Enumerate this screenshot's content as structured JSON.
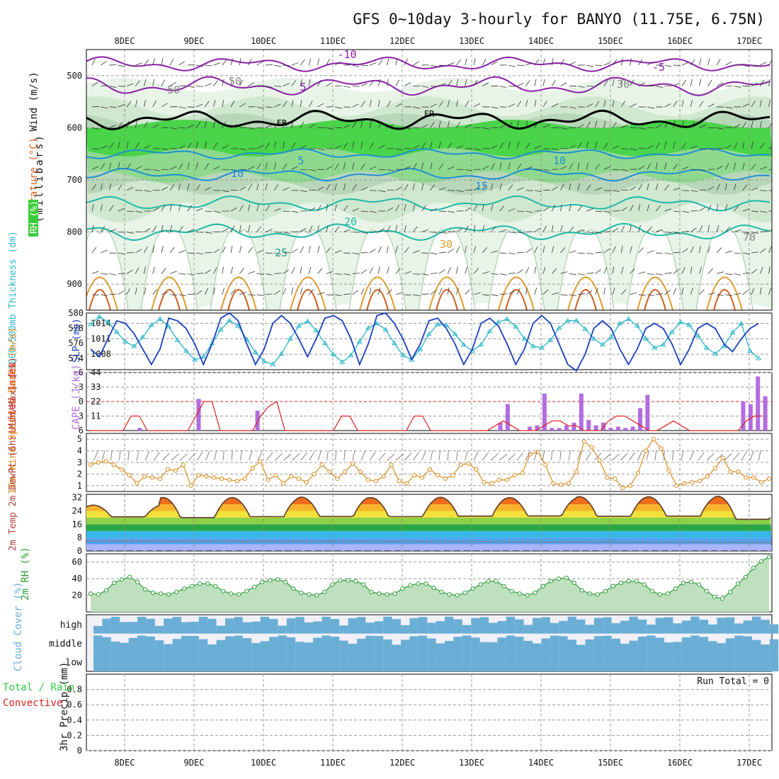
{
  "title": "GFS 0~10day 3-hourly for BANYO (11.75E, 6.75N)",
  "colors": {
    "rh": "#2ecc40",
    "temp_neg": "#8b1fa8",
    "temp_pos": "#1f8fd6",
    "freeze": "#000000",
    "slp": "#1a3fbf",
    "thick": "#2ab7c9",
    "li": "#e02020",
    "cape": "#b36ce0",
    "wind": "#e08a1e",
    "rh2m": "#2e9e3a",
    "cloud": "#6aaed6",
    "precip": "#2ecc40"
  },
  "chart_data": {
    "type": "meteogram",
    "x_axis": {
      "labels": [
        "8DEC",
        "9DEC",
        "10DEC",
        "11DEC",
        "12DEC",
        "13DEC",
        "14DEC",
        "15DEC",
        "16DEC",
        "17DEC"
      ],
      "start_offset_days": -0.55,
      "end_offset_days": 9.3
    },
    "panels": [
      {
        "id": "upper_air",
        "ylabel": "(millibars)",
        "left_labels": [
          "Wind (m/s)",
          "Temperature (°C)",
          "RH (%)"
        ],
        "ylim": [
          950,
          450
        ],
        "yticks": [
          500,
          600,
          700,
          800,
          900
        ],
        "contour_labels": [
          "-10",
          "-5",
          "5",
          "FR",
          "FR",
          "5",
          "10",
          "10",
          "15",
          "20",
          "25",
          "30",
          "30",
          "50",
          "50",
          "70"
        ],
        "isotherms": [
          {
            "label": "-10",
            "base": 478,
            "amp": 14
          },
          {
            "label": "-5",
            "base": 520,
            "amp": 18
          },
          {
            "label": "FR",
            "base": 585,
            "amp": 18
          },
          {
            "label": "5",
            "base": 650,
            "amp": 10
          },
          {
            "label": "10",
            "base": 690,
            "amp": 12
          },
          {
            "label": "15",
            "base": 745,
            "amp": 14
          },
          {
            "label": "20",
            "base": 800,
            "amp": 16
          }
        ]
      },
      {
        "id": "slp_thickness",
        "ylabel_left": "1000~500mb Thickness (dm)",
        "ylabel_right": "SLP (mb)",
        "left_ticks": [
          574,
          576,
          578,
          580
        ],
        "right_ticks": [
          1008,
          1011,
          1014
        ],
        "ylim_left": [
          572.5,
          580
        ],
        "ylim_right": [
          1005,
          1016
        ],
        "slp_series": [
          1009,
          1007.5,
          1011,
          1014.5,
          1014,
          1012,
          1009,
          1006,
          1009,
          1015,
          1014.5,
          1013,
          1010,
          1006,
          1010,
          1015,
          1016,
          1014.5,
          1010,
          1006,
          1009,
          1014,
          1015.5,
          1014,
          1011,
          1007.5,
          1011,
          1015,
          1015.5,
          1014.5,
          1011,
          1006,
          1010,
          1015.5,
          1016,
          1014,
          1011,
          1007,
          1010,
          1014.5,
          1015,
          1013,
          1010,
          1006,
          1009,
          1014,
          1015,
          1013.5,
          1010,
          1006,
          1009,
          1014,
          1015.5,
          1014,
          1010,
          1006,
          1004.8,
          1008,
          1013,
          1014.5,
          1013,
          1009,
          1006,
          1009,
          1013,
          1014,
          1013,
          1010,
          1006,
          1009,
          1013,
          1014,
          1013,
          1010,
          1008.5,
          1011,
          1013,
          1014
        ],
        "thickness_series": [
          578.5,
          579.5,
          578.8,
          577.5,
          576.2,
          575.6,
          576.8,
          578.4,
          579.2,
          578.2,
          576.4,
          575.0,
          573.8,
          574.2,
          576.0,
          577.8,
          579.0,
          578.3,
          576.5,
          574.8,
          573.6,
          573.2,
          574.6,
          576.6,
          578.3,
          578.9,
          577.7,
          576.0,
          574.5,
          573.5,
          574.4,
          576.2,
          578.0,
          578.6,
          577.8,
          576.0,
          574.4,
          573.8,
          575.2,
          577.2,
          578.5,
          578.4,
          577.2,
          575.8,
          575.0,
          575.8,
          577.6,
          578.8,
          579.2,
          578.2,
          576.6,
          575.6,
          575.4,
          576.4,
          578.0,
          579.0,
          579.0,
          577.9,
          576.6,
          575.8,
          576.8,
          578.6,
          579.2,
          578.3,
          576.6,
          575.4,
          575.8,
          577.5,
          578.8,
          578.4,
          577.0,
          575.4,
          574.6,
          575.6,
          577.4,
          578.6,
          575.0,
          574.0
        ]
      },
      {
        "id": "stability",
        "ylabel_left": "Lifted Index",
        "ylabel_right": "CAPE (J/kg)",
        "left_ticks": [
          "-6",
          "-3",
          "0",
          "3",
          "6"
        ],
        "right_ticks": [
          11,
          22,
          33,
          44
        ],
        "cape_ylim": [
          0,
          44
        ],
        "li_ylim": [
          6,
          -6
        ],
        "li_series": [
          6,
          6,
          6,
          6,
          6,
          3,
          3,
          6,
          6,
          6,
          6,
          6,
          6,
          3,
          0,
          0,
          6,
          6,
          6,
          6,
          6,
          3,
          1,
          0,
          6,
          6,
          6,
          6,
          6,
          6,
          6,
          3,
          3,
          6,
          6,
          6,
          6,
          6,
          6,
          6,
          3,
          3,
          6,
          6,
          6,
          6,
          6,
          6,
          6,
          6,
          5,
          4,
          5,
          6,
          6,
          6,
          5,
          4,
          4,
          5,
          5,
          6,
          6,
          6,
          4,
          3,
          3,
          4,
          5,
          6,
          6,
          5,
          4,
          5,
          6,
          6,
          6,
          6,
          6,
          6,
          6,
          4,
          3,
          3
        ],
        "cape_series": [
          0,
          0,
          0,
          0,
          0,
          0,
          2,
          0,
          0,
          0,
          0,
          0,
          0,
          0,
          24,
          0,
          0,
          0,
          0,
          0,
          0,
          0,
          15,
          0,
          0,
          0,
          0,
          0,
          0,
          0,
          0,
          0,
          0,
          0,
          0,
          0,
          0,
          0,
          0,
          0,
          0,
          0,
          0,
          0,
          0,
          0,
          0,
          0,
          0,
          0,
          0,
          0,
          0,
          0,
          0,
          6,
          20,
          0,
          0,
          3,
          4,
          28,
          2,
          2,
          4,
          6,
          28,
          8,
          4,
          6,
          2,
          3,
          2,
          3,
          17,
          27,
          0,
          0,
          0,
          0,
          0,
          0,
          0,
          0,
          0,
          0,
          0,
          0,
          22,
          20,
          41,
          26
        ]
      },
      {
        "id": "wind10m",
        "ylabel": "10m Wind Speed & Barbs (m/s)",
        "ylim": [
          0.5,
          5.5
        ],
        "yticks": [
          1,
          2,
          3,
          4,
          5
        ],
        "series": [
          2.8,
          3.0,
          3.1,
          2.8,
          2.4,
          1.9,
          1.2,
          1.8,
          1.7,
          1.6,
          2.4,
          2.3,
          2.8,
          1.0,
          1.9,
          1.8,
          1.7,
          1.6,
          1.5,
          1.4,
          1.6,
          2.5,
          3.1,
          1.5,
          1.9,
          1.2,
          1.8,
          1.6,
          1.3,
          2.0,
          2.8,
          2.2,
          1.6,
          2.2,
          2.9,
          2.2,
          1.5,
          1.4,
          1.8,
          2.8,
          1.4,
          1.2,
          1.9,
          1.7,
          2.4,
          1.9,
          1.6,
          1.9,
          2.8,
          2.9,
          2.4,
          1.3,
          1.2,
          1.5,
          1.5,
          1.9,
          2.1,
          3.7,
          3.9,
          2.8,
          1.2,
          1.1,
          1.2,
          2.2,
          4.8,
          4.3,
          3.2,
          1.7,
          1.6,
          0.8,
          1.0,
          2.1,
          4.0,
          5.0,
          4.2,
          2.3,
          1.0,
          1.2,
          1.3,
          1.4,
          1.8,
          2.5,
          3.4,
          2.2,
          2.2,
          1.7,
          1.7,
          1.3,
          1.6
        ]
      },
      {
        "id": "temp2m",
        "ylabel": "2m Temp 2m DewPt (6hr Min/Max) (°C)",
        "ylim": [
          0,
          34
        ],
        "yticks": [
          0,
          8,
          16,
          24,
          32
        ],
        "daily_max": [
          27.5,
          32.1,
          32.0,
          32.3,
          32.0,
          32.2,
          32.0,
          32.6,
          32.5,
          32.8
        ],
        "daily_min": [
          20.5,
          20.0,
          20.6,
          20.7,
          20.6,
          20.9,
          21.0,
          20.8,
          20.9,
          19.0
        ],
        "dewpoint_level": 6
      },
      {
        "id": "rh2m",
        "ylabel": "2m RH (%)",
        "ylim": [
          0,
          70
        ],
        "yticks": [
          20,
          40,
          60
        ],
        "series": [
          22,
          21,
          26,
          35,
          39,
          42,
          36,
          27,
          23,
          22,
          21,
          24,
          28,
          31,
          34,
          34,
          31,
          25,
          22,
          21,
          25,
          30,
          36,
          38,
          39,
          36,
          28,
          23,
          21,
          20,
          24,
          33,
          38,
          38,
          37,
          33,
          24,
          22,
          21,
          22,
          28,
          32,
          34,
          34,
          29,
          24,
          21,
          20,
          23,
          28,
          33,
          37,
          37,
          31,
          25,
          22,
          20,
          23,
          31,
          37,
          40,
          41,
          35,
          26,
          22,
          21,
          25,
          31,
          35,
          37,
          37,
          33,
          25,
          21,
          22,
          28,
          35,
          36,
          33,
          25,
          18,
          16,
          24,
          34,
          42,
          53,
          61,
          66
        ]
      },
      {
        "id": "cloud",
        "ylabel": "Cloud Cover (%)",
        "levels": [
          "high",
          "middle",
          "low"
        ]
      },
      {
        "id": "precip",
        "ylabel_left": "Total / Rain Convective",
        "ylabel": "3hr Precip (mm)",
        "ylim": [
          0,
          1
        ],
        "yticks": [
          "0",
          "0.2",
          "0.4",
          "0.6",
          "0.8"
        ],
        "series": [],
        "annotation": "Run Total = 0"
      }
    ]
  }
}
